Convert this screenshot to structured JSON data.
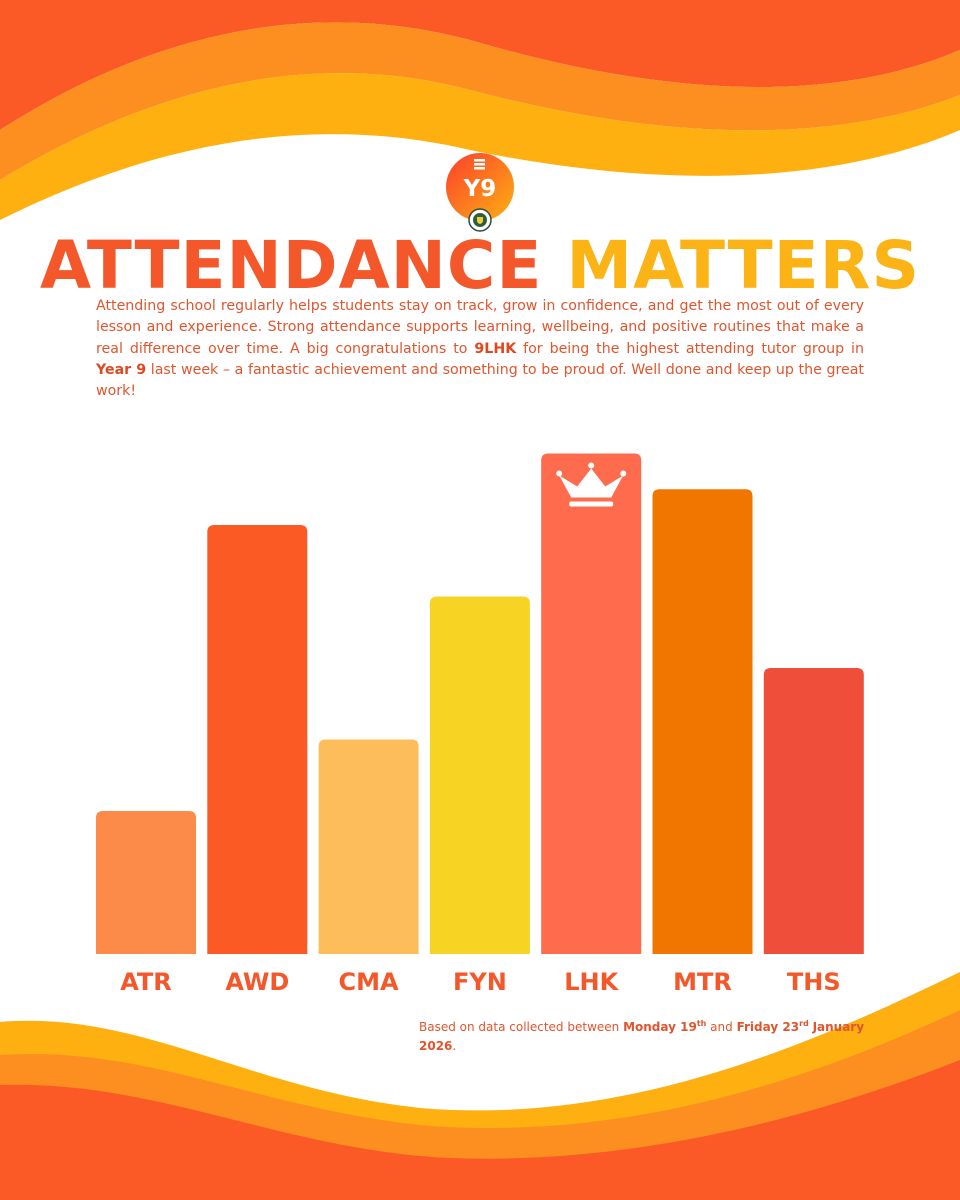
{
  "logo": {
    "text": "Y9"
  },
  "title": {
    "part1": "ATTENDANCE",
    "part2": "MATTERS"
  },
  "intro": {
    "text_a": "Attending school regularly helps students stay on track, grow in confidence, and get the most out of every lesson and experience. Strong attendance supports learning, wellbeing, and positive routines that make a real difference over time. A big congratulations to ",
    "group": "9LHK",
    "text_b": " for being the highest attending tutor group in ",
    "year": "Year 9",
    "text_c": " last week – a fantastic achievement and something to be proud of. Well done and keep up the great work!"
  },
  "source": {
    "prefix": "Based on data collected between ",
    "start_day": "Monday 19",
    "start_sup": "th",
    "middle": " and ",
    "end_day": "Friday 23",
    "end_sup": "rd",
    "end_month": "January 2026",
    "suffix": "."
  },
  "chart_data": {
    "type": "bar",
    "title": "ATTENDANCE MATTERS",
    "xlabel": "",
    "ylabel": "",
    "categories": [
      "ATR",
      "AWD",
      "CMA",
      "FYN",
      "LHK",
      "MTR",
      "THS"
    ],
    "values": [
      2,
      6,
      3,
      5,
      7,
      6.5,
      4
    ],
    "ylim": [
      0,
      8
    ],
    "grid": false,
    "axis_values_shown": false,
    "highlight": "LHK",
    "highlight_icon": "crown-icon",
    "colors": [
      "#fc8b49",
      "#fb5a24",
      "#fdbd5b",
      "#f7d323",
      "#fe6c4d",
      "#f07600",
      "#ee4e3a"
    ]
  }
}
